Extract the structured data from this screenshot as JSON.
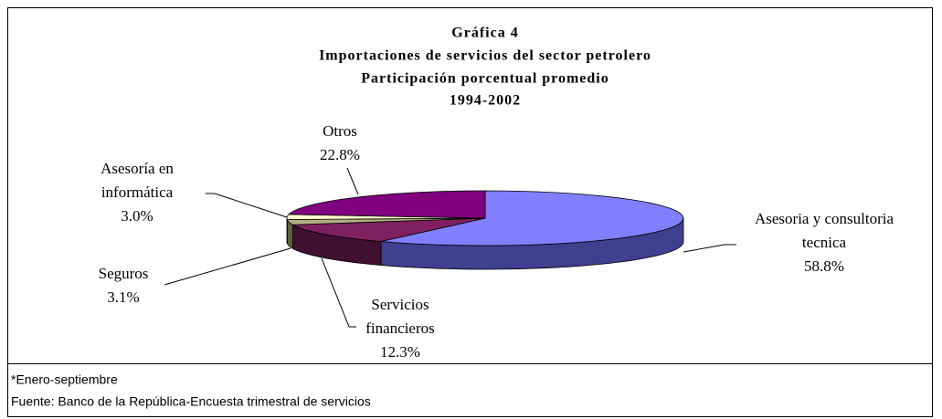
{
  "chart_data": {
    "type": "pie3d",
    "title": [
      "Gráfica 4",
      "Importaciones de servicios del sector petrolero",
      "Participación porcentual promedio",
      "1994-2002"
    ],
    "categories": [
      "Asesoria y consultoria tecnica",
      "Servicios financieros",
      "Seguros",
      "Asesoría en informática",
      "Otros"
    ],
    "values": [
      58.8,
      12.3,
      3.1,
      3.0,
      22.8
    ],
    "value_labels": [
      "58.8%",
      "12.3%",
      "3.1%",
      "3.0%",
      "22.8%"
    ],
    "colors": [
      "#8080ff",
      "#802060",
      "#b0b080",
      "#ffffcc",
      "#800080"
    ],
    "side_colors": [
      "#404090",
      "#401030",
      "#606040",
      "#909070",
      "#400040"
    ],
    "notes": [
      "*Enero-septiembre",
      "Fuente: Banco de la República-Encuesta trimestral de servicios"
    ]
  }
}
